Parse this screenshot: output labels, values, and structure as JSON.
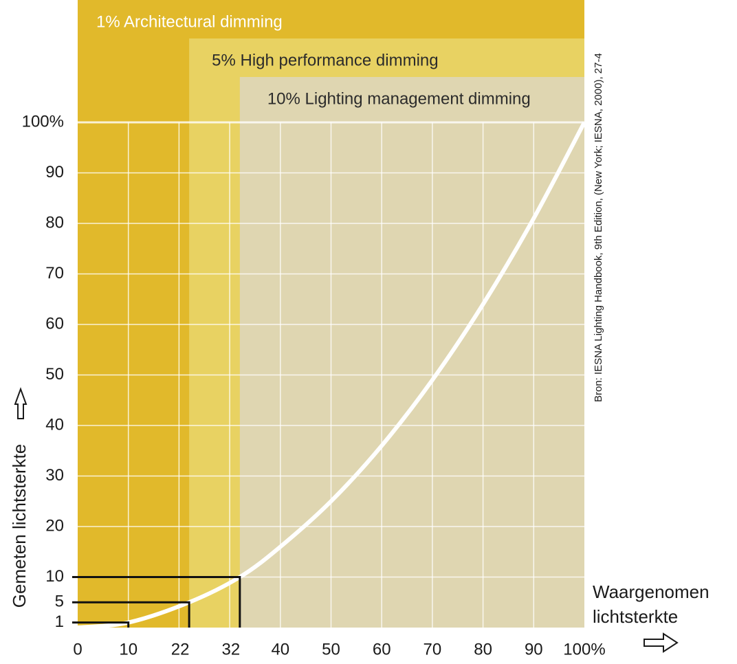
{
  "chart_data": {
    "type": "line",
    "xlim": [
      0,
      100
    ],
    "ylim": [
      0,
      100
    ],
    "xticks": [
      0,
      10,
      22,
      32,
      40,
      50,
      60,
      70,
      80,
      90,
      {
        "value": 100,
        "label": "100%"
      }
    ],
    "yticks": [
      1,
      5,
      10,
      20,
      30,
      40,
      50,
      60,
      70,
      80,
      90,
      {
        "value": 100,
        "label": "100%"
      }
    ],
    "xgrid": [
      10,
      20,
      30,
      40,
      50,
      60,
      70,
      80,
      90
    ],
    "ygrid": [
      10,
      20,
      30,
      40,
      50,
      60,
      70,
      80,
      90,
      100
    ],
    "bands": [
      {
        "label": "1% Architectural dimming",
        "start": 0,
        "color": "#e1b92b",
        "text_color": "#ffffff"
      },
      {
        "label": "5% High performance dimming",
        "start": 22,
        "color": "#e8d262",
        "text_color": "#2b2b2b"
      },
      {
        "label": "10% Lighting management dimming",
        "start": 32,
        "color": "#dfd6b1",
        "text_color": "#2b2b2b"
      }
    ],
    "series": [
      {
        "color": "#ffffff",
        "x": [
          0,
          10,
          22,
          32,
          40,
          50,
          60,
          70,
          80,
          90,
          100
        ],
        "values": [
          0,
          1,
          5,
          10,
          16,
          25,
          36,
          49,
          64,
          81,
          100
        ]
      }
    ],
    "guides": [
      {
        "x": 10,
        "y": 1
      },
      {
        "x": 22,
        "y": 5
      },
      {
        "x": 32,
        "y": 10
      }
    ],
    "x_label": "Waargenomen lichtsterkte",
    "y_label": "Gemeten lichtsterkte",
    "source": "Bron: IESNA Lighting Handbook, 9th Edition, (New York; IESNA, 2000), 27-4"
  }
}
